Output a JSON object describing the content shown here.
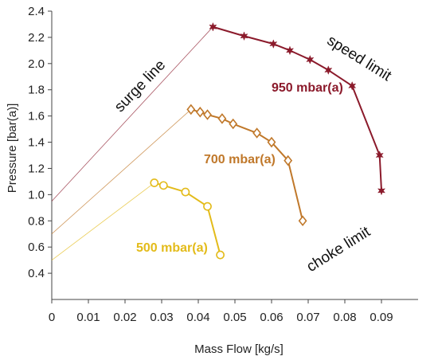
{
  "chart_data": {
    "type": "line",
    "xlabel": "Mass Flow [kg/s]",
    "ylabel": "Pressure [bar(a)]",
    "xlim": [
      0,
      0.1
    ],
    "ylim": [
      0.2,
      2.4
    ],
    "x_ticks": [
      0,
      0.01,
      0.02,
      0.03,
      0.04,
      0.05,
      0.06,
      0.07,
      0.08,
      0.09
    ],
    "x_tick_labels": [
      "0",
      "0.01",
      "0.02",
      "0.03",
      "0.04",
      "0.05",
      "0.06",
      "0.07",
      "0.08",
      "0.09"
    ],
    "y_ticks": [
      0.4,
      0.6,
      0.8,
      1.0,
      1.2,
      1.4,
      1.6,
      1.8,
      2.0,
      2.2,
      2.4
    ],
    "y_tick_labels": [
      "0.4",
      "0.6",
      "0.8",
      "1.0",
      "1.2",
      "1.4",
      "1.6",
      "1.8",
      "2.0",
      "2.2",
      "2.4"
    ],
    "grid": false,
    "series": [
      {
        "name": "950 mbar(a)",
        "color": "#8b1a2b",
        "marker": "star",
        "x": [
          0.044,
          0.0525,
          0.0605,
          0.065,
          0.0705,
          0.0755,
          0.082,
          0.0895,
          0.09
        ],
        "y": [
          2.28,
          2.21,
          2.15,
          2.1,
          2.03,
          1.95,
          1.83,
          1.3,
          1.03
        ]
      },
      {
        "name": "700 mbar(a)",
        "color": "#c0782a",
        "marker": "diamond",
        "x": [
          0.038,
          0.0405,
          0.0425,
          0.0465,
          0.0495,
          0.056,
          0.06,
          0.0645,
          0.0685
        ],
        "y": [
          1.65,
          1.63,
          1.61,
          1.58,
          1.54,
          1.47,
          1.4,
          1.26,
          0.8
        ]
      },
      {
        "name": "500 mbar(a)",
        "color": "#e3bb1a",
        "marker": "circle",
        "x": [
          0.028,
          0.0305,
          0.0365,
          0.0425,
          0.046
        ],
        "y": [
          1.09,
          1.07,
          1.02,
          0.91,
          0.54
        ]
      }
    ],
    "surge_lines": [
      {
        "color": "#8b1a2b",
        "x": [
          0,
          0.044
        ],
        "y": [
          0.95,
          2.28
        ]
      },
      {
        "color": "#c0782a",
        "x": [
          0,
          0.038
        ],
        "y": [
          0.7,
          1.65
        ]
      },
      {
        "color": "#e3bb1a",
        "x": [
          0,
          0.028
        ],
        "y": [
          0.5,
          1.09
        ]
      }
    ],
    "annotations": {
      "surge": "surge line",
      "speed": "speed limit",
      "choke": "choke limit"
    }
  }
}
